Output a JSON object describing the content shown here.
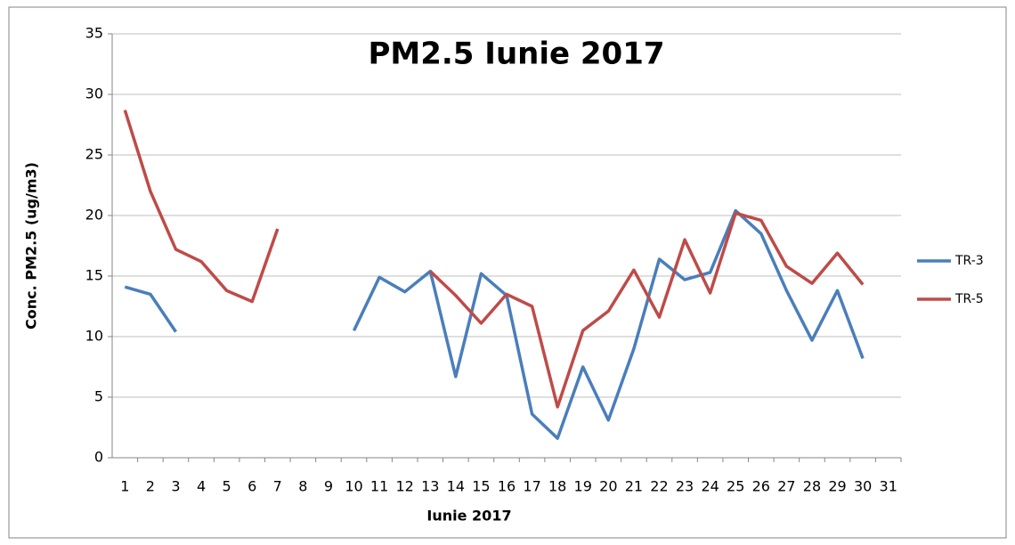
{
  "chart_data": {
    "type": "line",
    "title": "PM2.5 Iunie 2017",
    "x_label": "Iunie 2017",
    "y_label": "Conc. PM2.5 (ug/m3)",
    "categories": [
      "1",
      "2",
      "3",
      "4",
      "5",
      "6",
      "7",
      "8",
      "9",
      "10",
      "11",
      "12",
      "13",
      "14",
      "15",
      "16",
      "17",
      "18",
      "19",
      "20",
      "21",
      "22",
      "23",
      "24",
      "25",
      "26",
      "27",
      "28",
      "29",
      "30",
      "31"
    ],
    "series": [
      {
        "name": "TR-3",
        "color": "#4a7ebb",
        "values": [
          14.1,
          13.5,
          10.4,
          null,
          null,
          null,
          null,
          null,
          null,
          10.5,
          14.9,
          13.7,
          15.4,
          6.7,
          15.2,
          13.4,
          3.6,
          1.6,
          7.5,
          3.1,
          9.0,
          16.4,
          14.7,
          15.3,
          20.4,
          18.5,
          13.8,
          9.7,
          13.8,
          8.2,
          null
        ]
      },
      {
        "name": "TR-5",
        "color": "#be4b48",
        "values": [
          28.7,
          22.0,
          17.2,
          16.2,
          13.8,
          12.9,
          18.9,
          null,
          null,
          null,
          null,
          null,
          15.4,
          13.4,
          11.1,
          13.5,
          12.5,
          4.2,
          10.5,
          12.1,
          15.5,
          11.6,
          18.0,
          13.6,
          20.2,
          19.6,
          15.8,
          14.4,
          16.9,
          14.3,
          null
        ]
      }
    ],
    "ylim": [
      0,
      35
    ],
    "yticks": [
      0,
      5,
      10,
      15,
      20,
      25,
      30,
      35
    ],
    "grid": true,
    "legend": "right"
  }
}
